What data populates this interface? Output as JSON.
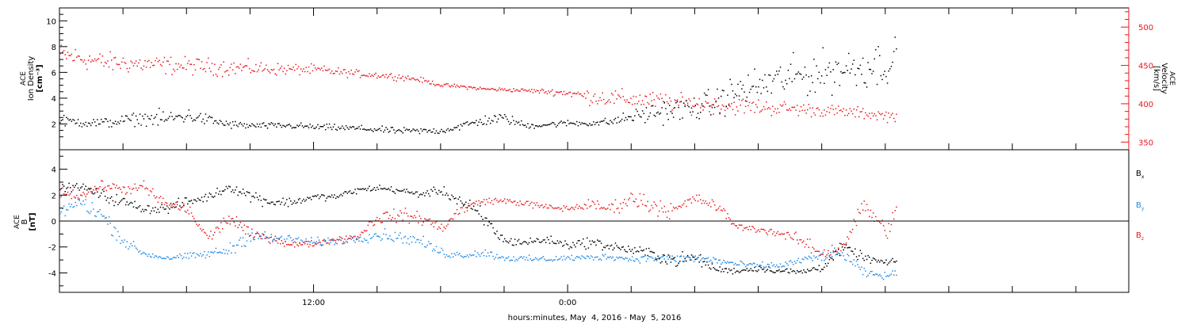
{
  "xlabel": "hours:minutes, May  4, 2016 - May  5, 2016",
  "x_ticks": [
    {
      "hour": 12,
      "label": "12:00"
    },
    {
      "hour": 24,
      "label": "0:00"
    }
  ],
  "x_range_hours": [
    0,
    50.5
  ],
  "data_end_hour": 39.5,
  "colors": {
    "black": "#000000",
    "red": "#e8161b",
    "blue": "#1e88e5"
  },
  "chart_data": [
    {
      "type": "scatter",
      "title": "",
      "ylabel_left": {
        "line1": "ACE",
        "line2": "Ion Density",
        "unit": "[cm⁻³]"
      },
      "ylabel_right": {
        "line1": "ACE",
        "line2": "Velocity",
        "unit": "[km/s]"
      },
      "ylim_left": [
        0,
        11
      ],
      "ylim_right": [
        340,
        525
      ],
      "yticks_left": [
        2,
        4,
        6,
        8,
        10
      ],
      "yticks_right": [
        350,
        400,
        450,
        500
      ],
      "x_unit": "hours from May 4 2016 00:00",
      "series": [
        {
          "key": "density",
          "axis": "left",
          "color": "#000000",
          "x": [
            0,
            2,
            4,
            5,
            6,
            8,
            9,
            11,
            12,
            14,
            16,
            18,
            19,
            20,
            21,
            22,
            23,
            24,
            25,
            26,
            27,
            28,
            29,
            30,
            31,
            32,
            33,
            34,
            35,
            36,
            37,
            38,
            39,
            39.5
          ],
          "y": [
            2.3,
            2.1,
            2.5,
            2.4,
            2.7,
            2.0,
            1.9,
            1.9,
            1.8,
            1.7,
            1.5,
            1.5,
            1.9,
            2.3,
            2.5,
            1.9,
            2.0,
            2.1,
            2.1,
            2.2,
            2.6,
            2.9,
            3.1,
            3.3,
            3.7,
            4.6,
            5.0,
            5.5,
            5.8,
            6.0,
            6.3,
            6.5,
            6.8,
            7.0
          ],
          "spread": [
            0.5,
            0.5,
            0.6,
            0.9,
            0.7,
            0.4,
            0.3,
            0.3,
            0.3,
            0.3,
            0.3,
            0.3,
            0.4,
            0.5,
            0.5,
            0.3,
            0.3,
            0.3,
            0.3,
            0.4,
            0.6,
            1.0,
            1.1,
            1.2,
            1.4,
            1.6,
            1.7,
            1.8,
            1.9,
            2.0,
            2.0,
            2.1,
            2.2,
            2.2
          ]
        },
        {
          "key": "velocity",
          "axis": "right",
          "color": "#e8161b",
          "x": [
            0,
            1,
            2,
            4,
            6,
            8,
            10,
            12,
            14,
            16,
            17,
            18,
            19,
            20,
            22,
            24,
            25,
            26,
            28,
            30,
            32,
            34,
            36,
            38,
            39,
            39.5
          ],
          "y": [
            465,
            460,
            455,
            452,
            450,
            448,
            446,
            445,
            440,
            436,
            432,
            425,
            423,
            420,
            418,
            415,
            410,
            408,
            405,
            400,
            398,
            395,
            392,
            388,
            385,
            385
          ],
          "spread": [
            18,
            18,
            16,
            15,
            14,
            13,
            10,
            8,
            6,
            5,
            4,
            3,
            3,
            3,
            3,
            6,
            12,
            14,
            14,
            14,
            14,
            12,
            10,
            9,
            9,
            9
          ]
        }
      ]
    },
    {
      "type": "scatter",
      "title": "",
      "ylabel_left": {
        "line1": "ACE",
        "line2": "B",
        "unit": "[nT]"
      },
      "ylim": [
        -5.5,
        5.5
      ],
      "yticks": [
        -4,
        -2,
        0,
        2,
        4
      ],
      "zero_line": true,
      "x_unit": "hours from May 4 2016 00:00",
      "legend": {
        "position": "right",
        "entries": [
          {
            "main": "B",
            "sub": "x",
            "color": "#000000"
          },
          {
            "main": "B",
            "sub": "y",
            "color": "#1e88e5"
          },
          {
            "main": "B",
            "sub": "z",
            "color": "#e8161b"
          }
        ]
      },
      "series": [
        {
          "key": "bx",
          "color": "#000000",
          "x": [
            0,
            1,
            2,
            3,
            4,
            5,
            6,
            7,
            8,
            9,
            10,
            11,
            12,
            13,
            14,
            15,
            16,
            17,
            18,
            19,
            20,
            21,
            22,
            23,
            24,
            25,
            26,
            27,
            28,
            29,
            30,
            31,
            32,
            33,
            34,
            35,
            36,
            37,
            38,
            39,
            39.5
          ],
          "y": [
            2.6,
            2.7,
            2.0,
            1.5,
            1.0,
            1.0,
            1.5,
            1.9,
            2.7,
            2.0,
            1.5,
            1.5,
            1.9,
            1.9,
            2.4,
            2.6,
            2.4,
            2.1,
            2.4,
            1.5,
            0.2,
            -1.5,
            -1.6,
            -1.4,
            -1.8,
            -1.6,
            -1.9,
            -2.2,
            -2.5,
            -3.0,
            -2.8,
            -3.7,
            -3.8,
            -3.6,
            -3.8,
            -3.9,
            -3.5,
            -2.0,
            -2.8,
            -3.2,
            -3.1
          ],
          "spread": [
            0.4,
            0.3,
            0.6,
            0.5,
            0.4,
            0.5,
            0.5,
            0.4,
            0.4,
            0.6,
            0.5,
            0.4,
            0.3,
            0.3,
            0.3,
            0.3,
            0.3,
            0.3,
            0.4,
            0.7,
            1.0,
            0.4,
            0.4,
            0.4,
            0.4,
            0.5,
            0.5,
            0.4,
            0.6,
            0.7,
            0.6,
            0.3,
            0.3,
            0.3,
            0.3,
            0.3,
            0.4,
            0.5,
            0.4,
            0.3,
            0.3
          ]
        },
        {
          "key": "by",
          "color": "#1e88e5",
          "x": [
            0,
            1,
            2,
            3,
            4,
            5,
            6,
            7,
            8,
            9,
            10,
            11,
            12,
            13,
            14,
            15,
            16,
            17,
            18,
            19,
            20,
            21,
            22,
            23,
            24,
            25,
            26,
            27,
            28,
            29,
            30,
            31,
            32,
            33,
            34,
            35,
            36,
            37,
            38,
            39,
            39.5
          ],
          "y": [
            0.8,
            1.5,
            0.5,
            -1.5,
            -2.5,
            -2.8,
            -2.7,
            -2.5,
            -2.2,
            -1.0,
            -1.3,
            -1.4,
            -1.6,
            -1.5,
            -1.3,
            -1.0,
            -1.2,
            -1.5,
            -2.4,
            -2.6,
            -2.4,
            -2.8,
            -2.9,
            -2.9,
            -2.8,
            -2.8,
            -2.7,
            -2.9,
            -2.8,
            -2.9,
            -2.8,
            -3.0,
            -3.3,
            -3.4,
            -3.4,
            -3.0,
            -2.7,
            -2.5,
            -4.0,
            -4.2,
            -4.0
          ],
          "spread": [
            0.7,
            0.7,
            0.8,
            0.6,
            0.3,
            0.3,
            0.3,
            0.4,
            0.6,
            0.7,
            0.5,
            0.4,
            0.4,
            0.4,
            0.4,
            0.6,
            0.5,
            0.5,
            0.5,
            0.3,
            0.4,
            0.3,
            0.3,
            0.3,
            0.3,
            0.3,
            0.3,
            0.3,
            0.4,
            0.4,
            0.5,
            0.4,
            0.3,
            0.3,
            0.3,
            0.4,
            0.4,
            0.6,
            0.4,
            0.3,
            0.3
          ]
        },
        {
          "key": "bz",
          "color": "#e8161b",
          "x": [
            0,
            1,
            2,
            3,
            4,
            5,
            6,
            7,
            8,
            9,
            10,
            11,
            12,
            13,
            14,
            15,
            16,
            17,
            18,
            19,
            20,
            21,
            22,
            23,
            24,
            25,
            26,
            27,
            28,
            29,
            30,
            31,
            32,
            33,
            34,
            35,
            36,
            37,
            38,
            39,
            39.5
          ],
          "y": [
            2.3,
            2.0,
            2.8,
            2.5,
            2.6,
            1.3,
            1.0,
            -1.3,
            0.3,
            -1.0,
            -1.3,
            -1.8,
            -1.7,
            -1.4,
            -1.2,
            0.3,
            0.5,
            0.3,
            -0.5,
            1.0,
            1.6,
            1.6,
            1.4,
            1.1,
            1.0,
            1.3,
            1.0,
            1.8,
            1.3,
            0.8,
            1.8,
            1.2,
            -0.4,
            -0.6,
            -0.9,
            -1.5,
            -2.5,
            -1.8,
            1.3,
            -0.8,
            0.8
          ],
          "spread": [
            0.5,
            0.5,
            0.4,
            0.5,
            0.6,
            0.6,
            0.6,
            0.5,
            0.7,
            0.5,
            0.4,
            0.3,
            0.3,
            0.3,
            0.4,
            0.6,
            0.6,
            0.6,
            0.7,
            0.5,
            0.3,
            0.3,
            0.3,
            0.3,
            0.3,
            0.5,
            0.6,
            0.8,
            0.9,
            0.8,
            0.4,
            0.6,
            0.3,
            0.3,
            0.4,
            0.6,
            0.6,
            0.8,
            0.9,
            0.8,
            0.8
          ]
        }
      ]
    }
  ]
}
